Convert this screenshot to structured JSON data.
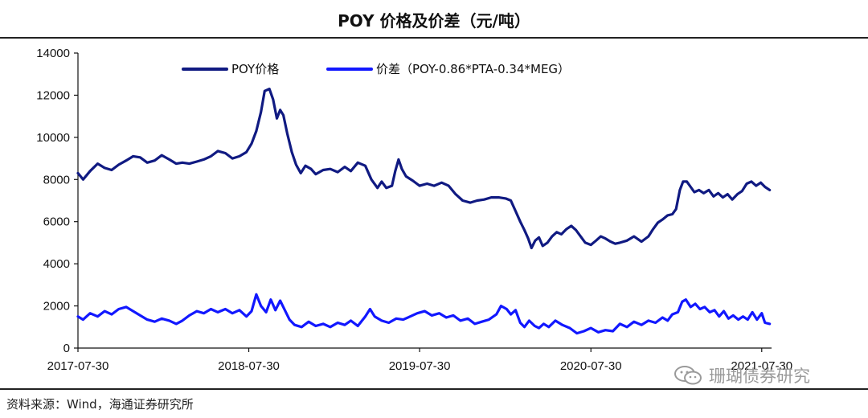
{
  "header": {
    "title": "POY 价格及价差（元/吨）"
  },
  "footer": {
    "source": "资料来源：Wind，海通证券研究所"
  },
  "watermark": {
    "text": "珊瑚债券研究"
  },
  "colors": {
    "poy": "#101a82",
    "spread": "#1218ff",
    "axis": "#111111",
    "rule": "#222222"
  },
  "chart_data": {
    "type": "line",
    "title": "POY 价格及价差（元/吨）",
    "xlabel": "",
    "ylabel": "",
    "ylim": [
      0,
      14000
    ],
    "yticks": [
      0,
      2000,
      4000,
      6000,
      8000,
      10000,
      12000,
      14000
    ],
    "xrange": [
      "2017-07-30",
      "2021-08-20"
    ],
    "xticks": [
      "2017-07-30",
      "2018-07-30",
      "2019-07-30",
      "2020-07-30",
      "2021-07-30"
    ],
    "grid": false,
    "legend_position": "top-center",
    "series": [
      {
        "name": "POY价格",
        "color": "#101a82",
        "points": [
          [
            "2017-07-30",
            8300
          ],
          [
            "2017-08-10",
            8000
          ],
          [
            "2017-08-25",
            8400
          ],
          [
            "2017-09-10",
            8750
          ],
          [
            "2017-09-25",
            8550
          ],
          [
            "2017-10-10",
            8450
          ],
          [
            "2017-10-25",
            8700
          ],
          [
            "2017-11-10",
            8900
          ],
          [
            "2017-11-25",
            9100
          ],
          [
            "2017-12-10",
            9050
          ],
          [
            "2017-12-25",
            8800
          ],
          [
            "2018-01-10",
            8900
          ],
          [
            "2018-01-25",
            9150
          ],
          [
            "2018-02-10",
            8950
          ],
          [
            "2018-02-25",
            8750
          ],
          [
            "2018-03-10",
            8800
          ],
          [
            "2018-03-25",
            8750
          ],
          [
            "2018-04-10",
            8850
          ],
          [
            "2018-04-25",
            8950
          ],
          [
            "2018-05-10",
            9100
          ],
          [
            "2018-05-25",
            9350
          ],
          [
            "2018-06-10",
            9250
          ],
          [
            "2018-06-25",
            9000
          ],
          [
            "2018-07-10",
            9100
          ],
          [
            "2018-07-25",
            9300
          ],
          [
            "2018-08-05",
            9700
          ],
          [
            "2018-08-15",
            10300
          ],
          [
            "2018-08-25",
            11200
          ],
          [
            "2018-09-02",
            12200
          ],
          [
            "2018-09-12",
            12300
          ],
          [
            "2018-09-20",
            11800
          ],
          [
            "2018-09-28",
            10900
          ],
          [
            "2018-10-05",
            11300
          ],
          [
            "2018-10-12",
            11050
          ],
          [
            "2018-10-20",
            10200
          ],
          [
            "2018-10-30",
            9300
          ],
          [
            "2018-11-08",
            8700
          ],
          [
            "2018-11-18",
            8300
          ],
          [
            "2018-11-28",
            8650
          ],
          [
            "2018-12-10",
            8500
          ],
          [
            "2018-12-20",
            8250
          ],
          [
            "2019-01-05",
            8450
          ],
          [
            "2019-01-20",
            8500
          ],
          [
            "2019-02-05",
            8350
          ],
          [
            "2019-02-20",
            8600
          ],
          [
            "2019-03-05",
            8400
          ],
          [
            "2019-03-20",
            8800
          ],
          [
            "2019-04-05",
            8650
          ],
          [
            "2019-04-18",
            8000
          ],
          [
            "2019-05-01",
            7600
          ],
          [
            "2019-05-10",
            7900
          ],
          [
            "2019-05-20",
            7600
          ],
          [
            "2019-06-01",
            7700
          ],
          [
            "2019-06-08",
            8400
          ],
          [
            "2019-06-15",
            8950
          ],
          [
            "2019-06-22",
            8500
          ],
          [
            "2019-07-01",
            8150
          ],
          [
            "2019-07-15",
            7950
          ],
          [
            "2019-07-30",
            7700
          ],
          [
            "2019-08-15",
            7800
          ],
          [
            "2019-08-30",
            7700
          ],
          [
            "2019-09-15",
            7850
          ],
          [
            "2019-09-30",
            7700
          ],
          [
            "2019-10-15",
            7300
          ],
          [
            "2019-10-30",
            7000
          ],
          [
            "2019-11-15",
            6900
          ],
          [
            "2019-11-30",
            7000
          ],
          [
            "2019-12-15",
            7050
          ],
          [
            "2019-12-30",
            7150
          ],
          [
            "2020-01-15",
            7150
          ],
          [
            "2020-01-30",
            7100
          ],
          [
            "2020-02-10",
            7000
          ],
          [
            "2020-02-20",
            6500
          ],
          [
            "2020-03-01",
            6000
          ],
          [
            "2020-03-10",
            5600
          ],
          [
            "2020-03-18",
            5200
          ],
          [
            "2020-03-25",
            4750
          ],
          [
            "2020-04-02",
            5100
          ],
          [
            "2020-04-10",
            5250
          ],
          [
            "2020-04-18",
            4850
          ],
          [
            "2020-04-28",
            5000
          ],
          [
            "2020-05-08",
            5300
          ],
          [
            "2020-05-18",
            5500
          ],
          [
            "2020-05-28",
            5400
          ],
          [
            "2020-06-08",
            5650
          ],
          [
            "2020-06-18",
            5800
          ],
          [
            "2020-06-28",
            5600
          ],
          [
            "2020-07-08",
            5300
          ],
          [
            "2020-07-18",
            5000
          ],
          [
            "2020-07-30",
            4900
          ],
          [
            "2020-08-10",
            5100
          ],
          [
            "2020-08-20",
            5300
          ],
          [
            "2020-08-30",
            5200
          ],
          [
            "2020-09-10",
            5050
          ],
          [
            "2020-09-20",
            4950
          ],
          [
            "2020-09-30",
            5000
          ],
          [
            "2020-10-15",
            5100
          ],
          [
            "2020-10-30",
            5300
          ],
          [
            "2020-11-15",
            5050
          ],
          [
            "2020-11-30",
            5300
          ],
          [
            "2020-12-10",
            5650
          ],
          [
            "2020-12-20",
            5950
          ],
          [
            "2020-12-30",
            6100
          ],
          [
            "2021-01-10",
            6300
          ],
          [
            "2021-01-20",
            6350
          ],
          [
            "2021-01-28",
            6600
          ],
          [
            "2021-02-05",
            7500
          ],
          [
            "2021-02-12",
            7900
          ],
          [
            "2021-02-20",
            7900
          ],
          [
            "2021-02-28",
            7650
          ],
          [
            "2021-03-08",
            7400
          ],
          [
            "2021-03-18",
            7500
          ],
          [
            "2021-03-28",
            7350
          ],
          [
            "2021-04-08",
            7500
          ],
          [
            "2021-04-18",
            7200
          ],
          [
            "2021-04-28",
            7350
          ],
          [
            "2021-05-08",
            7150
          ],
          [
            "2021-05-18",
            7300
          ],
          [
            "2021-05-28",
            7050
          ],
          [
            "2021-06-08",
            7300
          ],
          [
            "2021-06-18",
            7450
          ],
          [
            "2021-06-28",
            7800
          ],
          [
            "2021-07-08",
            7900
          ],
          [
            "2021-07-18",
            7700
          ],
          [
            "2021-07-28",
            7850
          ],
          [
            "2021-08-06",
            7650
          ],
          [
            "2021-08-16",
            7500
          ]
        ]
      },
      {
        "name": "价差（POY-0.86*PTA-0.34*MEG）",
        "color": "#1218ff",
        "points": [
          [
            "2017-07-30",
            1500
          ],
          [
            "2017-08-10",
            1350
          ],
          [
            "2017-08-25",
            1650
          ],
          [
            "2017-09-10",
            1500
          ],
          [
            "2017-09-25",
            1750
          ],
          [
            "2017-10-10",
            1600
          ],
          [
            "2017-10-25",
            1850
          ],
          [
            "2017-11-10",
            1950
          ],
          [
            "2017-11-25",
            1750
          ],
          [
            "2017-12-10",
            1550
          ],
          [
            "2017-12-25",
            1350
          ],
          [
            "2018-01-10",
            1250
          ],
          [
            "2018-01-25",
            1400
          ],
          [
            "2018-02-10",
            1300
          ],
          [
            "2018-02-25",
            1150
          ],
          [
            "2018-03-10",
            1300
          ],
          [
            "2018-03-25",
            1550
          ],
          [
            "2018-04-10",
            1750
          ],
          [
            "2018-04-25",
            1650
          ],
          [
            "2018-05-10",
            1850
          ],
          [
            "2018-05-25",
            1700
          ],
          [
            "2018-06-10",
            1850
          ],
          [
            "2018-06-25",
            1650
          ],
          [
            "2018-07-10",
            1800
          ],
          [
            "2018-07-25",
            1500
          ],
          [
            "2018-08-05",
            1750
          ],
          [
            "2018-08-15",
            2550
          ],
          [
            "2018-08-25",
            2000
          ],
          [
            "2018-09-05",
            1700
          ],
          [
            "2018-09-15",
            2300
          ],
          [
            "2018-09-25",
            1800
          ],
          [
            "2018-10-05",
            2250
          ],
          [
            "2018-10-15",
            1800
          ],
          [
            "2018-10-25",
            1350
          ],
          [
            "2018-11-05",
            1100
          ],
          [
            "2018-11-20",
            1000
          ],
          [
            "2018-12-05",
            1250
          ],
          [
            "2018-12-20",
            1050
          ],
          [
            "2019-01-05",
            1150
          ],
          [
            "2019-01-20",
            1000
          ],
          [
            "2019-02-05",
            1200
          ],
          [
            "2019-02-20",
            1100
          ],
          [
            "2019-03-05",
            1300
          ],
          [
            "2019-03-20",
            1050
          ],
          [
            "2019-04-05",
            1500
          ],
          [
            "2019-04-15",
            1850
          ],
          [
            "2019-04-25",
            1500
          ],
          [
            "2019-05-10",
            1300
          ],
          [
            "2019-05-25",
            1200
          ],
          [
            "2019-06-10",
            1400
          ],
          [
            "2019-06-25",
            1350
          ],
          [
            "2019-07-10",
            1500
          ],
          [
            "2019-07-25",
            1650
          ],
          [
            "2019-08-10",
            1750
          ],
          [
            "2019-08-25",
            1550
          ],
          [
            "2019-09-10",
            1650
          ],
          [
            "2019-09-25",
            1450
          ],
          [
            "2019-10-10",
            1550
          ],
          [
            "2019-10-25",
            1300
          ],
          [
            "2019-11-10",
            1400
          ],
          [
            "2019-11-25",
            1150
          ],
          [
            "2019-12-10",
            1250
          ],
          [
            "2019-12-25",
            1350
          ],
          [
            "2020-01-10",
            1600
          ],
          [
            "2020-01-20",
            2000
          ],
          [
            "2020-02-01",
            1850
          ],
          [
            "2020-02-10",
            1600
          ],
          [
            "2020-02-20",
            1800
          ],
          [
            "2020-03-01",
            1200
          ],
          [
            "2020-03-10",
            1000
          ],
          [
            "2020-03-20",
            1300
          ],
          [
            "2020-04-01",
            1050
          ],
          [
            "2020-04-10",
            950
          ],
          [
            "2020-04-20",
            1150
          ],
          [
            "2020-05-01",
            1000
          ],
          [
            "2020-05-15",
            1300
          ],
          [
            "2020-05-30",
            1100
          ],
          [
            "2020-06-15",
            950
          ],
          [
            "2020-06-30",
            700
          ],
          [
            "2020-07-15",
            800
          ],
          [
            "2020-07-30",
            950
          ],
          [
            "2020-08-15",
            750
          ],
          [
            "2020-08-30",
            850
          ],
          [
            "2020-09-15",
            800
          ],
          [
            "2020-09-30",
            1150
          ],
          [
            "2020-10-15",
            1000
          ],
          [
            "2020-10-30",
            1250
          ],
          [
            "2020-11-15",
            1100
          ],
          [
            "2020-11-30",
            1300
          ],
          [
            "2020-12-15",
            1200
          ],
          [
            "2020-12-30",
            1450
          ],
          [
            "2021-01-10",
            1300
          ],
          [
            "2021-01-20",
            1600
          ],
          [
            "2021-02-01",
            1700
          ],
          [
            "2021-02-10",
            2200
          ],
          [
            "2021-02-18",
            2300
          ],
          [
            "2021-02-28",
            1950
          ],
          [
            "2021-03-10",
            2100
          ],
          [
            "2021-03-20",
            1850
          ],
          [
            "2021-03-30",
            1950
          ],
          [
            "2021-04-10",
            1700
          ],
          [
            "2021-04-20",
            1800
          ],
          [
            "2021-04-30",
            1500
          ],
          [
            "2021-05-10",
            1750
          ],
          [
            "2021-05-20",
            1400
          ],
          [
            "2021-05-30",
            1550
          ],
          [
            "2021-06-10",
            1350
          ],
          [
            "2021-06-20",
            1500
          ],
          [
            "2021-06-30",
            1350
          ],
          [
            "2021-07-10",
            1700
          ],
          [
            "2021-07-20",
            1350
          ],
          [
            "2021-07-30",
            1650
          ],
          [
            "2021-08-06",
            1200
          ],
          [
            "2021-08-16",
            1150
          ]
        ]
      }
    ]
  }
}
